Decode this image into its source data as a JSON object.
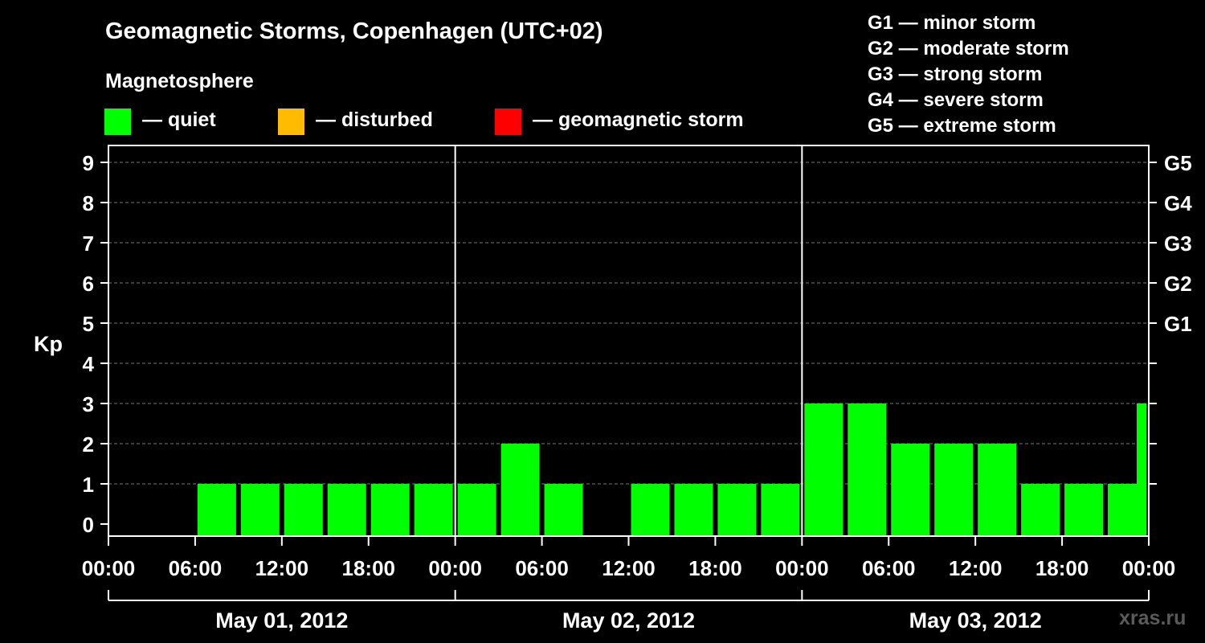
{
  "title": "Geomagnetic Storms, Copenhagen (UTC+02)",
  "legend": {
    "heading": "Magnetosphere",
    "items": [
      {
        "label": "— quiet",
        "color": "#00ff00"
      },
      {
        "label": "— disturbed",
        "color": "#ffbb00"
      },
      {
        "label": "— geomagnetic storm",
        "color": "#ff0000"
      }
    ]
  },
  "storm_scale": [
    "G1 — minor storm",
    "G2 — moderate storm",
    "G3 — strong storm",
    "G4 — severe storm",
    "G5 — extreme storm"
  ],
  "watermark": "xras.ru",
  "chart_data": {
    "type": "bar",
    "ylabel": "Kp",
    "ylim": [
      0,
      9
    ],
    "yticks": [
      "0",
      "1",
      "2",
      "3",
      "4",
      "5",
      "6",
      "7",
      "8",
      "9"
    ],
    "right_ticks": [
      {
        "kp": 5,
        "label": "G1"
      },
      {
        "kp": 6,
        "label": "G2"
      },
      {
        "kp": 7,
        "label": "G3"
      },
      {
        "kp": 8,
        "label": "G4"
      },
      {
        "kp": 9,
        "label": "G5"
      }
    ],
    "xticks": [
      "00:00",
      "06:00",
      "12:00",
      "18:00",
      "00:00",
      "06:00",
      "12:00",
      "18:00",
      "00:00",
      "06:00",
      "12:00",
      "18:00",
      "00:00"
    ],
    "days": [
      "May 01, 2012",
      "May 02, 2012",
      "May 03, 2012"
    ],
    "interval_hours": 3,
    "grid": "dashed horizontal at each Kp level",
    "values": [
      0,
      0,
      1,
      1,
      1,
      1,
      1,
      1,
      1,
      2,
      1,
      0,
      1,
      1,
      1,
      1,
      3,
      3,
      2,
      2,
      2,
      1,
      1,
      1,
      3
    ],
    "bar_color": "#00ff00"
  }
}
